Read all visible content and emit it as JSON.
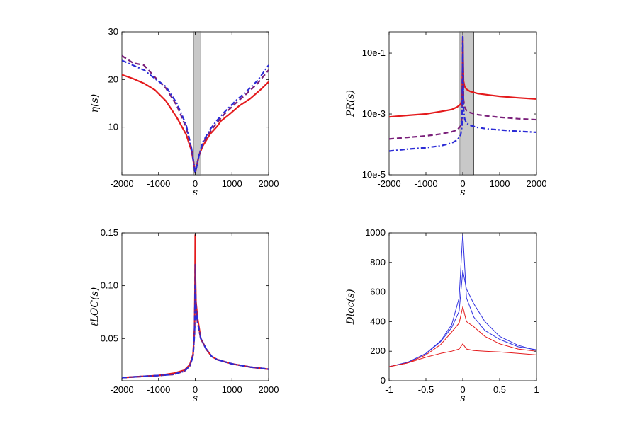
{
  "figure": {
    "layout": "2x2 grid"
  },
  "chart_data": [
    {
      "type": "line",
      "panel": "top-left",
      "xlabel": "s",
      "ylabel": "η(s)",
      "xlim": [
        -2000,
        2000
      ],
      "ylim": [
        0,
        30
      ],
      "xticks": [
        -2000,
        -1000,
        0,
        1000,
        2000
      ],
      "xtick_labels": [
        "-2000",
        "-1000",
        "0",
        "1000",
        "2000"
      ],
      "yticks": [
        10,
        20,
        30
      ],
      "ytick_labels": [
        "10",
        "20",
        "30"
      ],
      "shaded_band": [
        -50,
        150
      ],
      "series": [
        {
          "name": "red solid",
          "color": "#e41a1c",
          "style": "solid",
          "x": [
            -2000,
            -1700,
            -1400,
            -1100,
            -800,
            -500,
            -250,
            -100,
            0,
            100,
            200,
            400,
            600,
            700,
            900,
            1200,
            1500,
            1800,
            2000
          ],
          "y": [
            21,
            20.2,
            19.2,
            17.8,
            15.5,
            12,
            8.5,
            5,
            0.5,
            4,
            6,
            8.5,
            10.2,
            11.3,
            12.5,
            14.5,
            16,
            18,
            19.5
          ]
        },
        {
          "name": "purple dashed",
          "color": "#7a1f7a",
          "style": "dashed",
          "x": [
            -2000,
            -1700,
            -1400,
            -1100,
            -800,
            -500,
            -250,
            -100,
            0,
            100,
            200,
            400,
            600,
            800,
            1100,
            1400,
            1700,
            2000
          ],
          "y": [
            25,
            23.5,
            23,
            20.5,
            18.2,
            14.5,
            10,
            5.5,
            0.5,
            4,
            6.5,
            9,
            11,
            12.8,
            15,
            17,
            19.2,
            22
          ]
        },
        {
          "name": "blue dash-dot",
          "color": "#2b2bd6",
          "style": "dashdot",
          "x": [
            -2000,
            -1700,
            -1400,
            -1100,
            -800,
            -500,
            -250,
            -100,
            0,
            100,
            200,
            400,
            600,
            800,
            1100,
            1400,
            1700,
            2000
          ],
          "y": [
            24,
            23,
            22,
            20.2,
            18.5,
            15,
            10.5,
            5.5,
            0.3,
            4,
            6.8,
            9.5,
            11.5,
            13.2,
            15.5,
            17.5,
            19.8,
            23
          ]
        }
      ]
    },
    {
      "type": "line",
      "panel": "top-right",
      "xlabel": "s",
      "ylabel": "PR(s)",
      "yscale": "log",
      "xlim": [
        -2000,
        2000
      ],
      "ylim": [
        1e-05,
        0.5
      ],
      "xticks": [
        -2000,
        -1000,
        0,
        1000,
        2000
      ],
      "xtick_labels": [
        "-2000",
        "-1000",
        "0",
        "1000",
        "2000"
      ],
      "yticks": [
        1e-05,
        0.001,
        0.1
      ],
      "ytick_labels": [
        "10e-5",
        "10e-3",
        "10e-1"
      ],
      "shaded_band": [
        -100,
        300
      ],
      "vline": -50,
      "series": [
        {
          "name": "red solid",
          "color": "#e41a1c",
          "style": "solid",
          "x": [
            -2000,
            -1500,
            -1000,
            -600,
            -300,
            -150,
            -60,
            -20,
            0,
            20,
            50,
            100,
            200,
            400,
            700,
            1000,
            1500,
            2000
          ],
          "y": [
            0.0008,
            0.0009,
            0.001,
            0.0012,
            0.0014,
            0.0017,
            0.0021,
            0.003,
            0.35,
            0.012,
            0.008,
            0.0065,
            0.0055,
            0.0047,
            0.0042,
            0.0038,
            0.0034,
            0.0031
          ]
        },
        {
          "name": "purple dashed",
          "color": "#7a1f7a",
          "style": "dashed",
          "x": [
            -2000,
            -1500,
            -1000,
            -600,
            -300,
            -150,
            -60,
            -20,
            0,
            20,
            50,
            100,
            200,
            400,
            700,
            1000,
            1500,
            2000
          ],
          "y": [
            0.00015,
            0.00017,
            0.00019,
            0.00022,
            0.00026,
            0.0003,
            0.0004,
            0.0008,
            0.35,
            0.003,
            0.0017,
            0.0013,
            0.0011,
            0.00095,
            0.00085,
            0.00078,
            0.0007,
            0.00065
          ]
        },
        {
          "name": "blue dash-dot",
          "color": "#2b2bd6",
          "style": "dashdot",
          "x": [
            -2000,
            -1500,
            -1000,
            -600,
            -300,
            -150,
            -60,
            -20,
            0,
            20,
            50,
            100,
            200,
            400,
            700,
            1000,
            1500,
            2000
          ],
          "y": [
            6e-05,
            7e-05,
            7.8e-05,
            9e-05,
            0.00011,
            0.00014,
            0.0002,
            0.0004,
            0.35,
            0.0015,
            0.0007,
            0.0005,
            0.00042,
            0.00036,
            0.00032,
            0.0003,
            0.00027,
            0.00025
          ]
        }
      ]
    },
    {
      "type": "line",
      "panel": "bottom-left",
      "xlabel": "s",
      "ylabel": "ℓLOC(s)",
      "xlim": [
        -2000,
        2000
      ],
      "ylim": [
        0.01,
        0.15
      ],
      "xticks": [
        -2000,
        -1000,
        0,
        1000,
        2000
      ],
      "xtick_labels": [
        "-2000",
        "-1000",
        "0",
        "1000",
        "2000"
      ],
      "yticks": [
        0.05,
        0.1,
        0.15
      ],
      "ytick_labels": [
        "0.05",
        "0.10",
        "0.15"
      ],
      "series": [
        {
          "name": "red solid",
          "color": "#e41a1c",
          "style": "solid",
          "x": [
            -2000,
            -1500,
            -1000,
            -600,
            -300,
            -150,
            -60,
            -20,
            -5,
            0,
            5,
            20,
            60,
            150,
            300,
            450,
            600,
            1000,
            1500,
            2000
          ],
          "y": [
            0.013,
            0.014,
            0.015,
            0.017,
            0.02,
            0.025,
            0.035,
            0.06,
            0.1,
            0.148,
            0.11,
            0.085,
            0.07,
            0.05,
            0.04,
            0.033,
            0.03,
            0.026,
            0.023,
            0.021
          ]
        },
        {
          "name": "purple dashed",
          "color": "#7a1f7a",
          "style": "dashed",
          "x": [
            -2000,
            -1500,
            -1000,
            -600,
            -300,
            -150,
            -60,
            -20,
            -5,
            0,
            5,
            20,
            60,
            150,
            300,
            450,
            600,
            1000,
            1500,
            2000
          ],
          "y": [
            0.013,
            0.014,
            0.015,
            0.016,
            0.019,
            0.024,
            0.034,
            0.055,
            0.09,
            0.12,
            0.1,
            0.08,
            0.066,
            0.05,
            0.04,
            0.033,
            0.03,
            0.026,
            0.023,
            0.021
          ]
        },
        {
          "name": "blue dash-dot",
          "color": "#2b2bd6",
          "style": "dashdot",
          "x": [
            -2000,
            -1500,
            -1000,
            -600,
            -300,
            -150,
            -60,
            -20,
            -5,
            0,
            5,
            20,
            60,
            150,
            300,
            450,
            600,
            1000,
            1500,
            2000
          ],
          "y": [
            0.013,
            0.014,
            0.015,
            0.016,
            0.019,
            0.024,
            0.033,
            0.055,
            0.085,
            0.1,
            0.095,
            0.08,
            0.066,
            0.05,
            0.04,
            0.033,
            0.03,
            0.026,
            0.023,
            0.021
          ]
        }
      ]
    },
    {
      "type": "line",
      "panel": "bottom-right",
      "xlabel": "s",
      "ylabel": "Dloc(s)",
      "xlim": [
        -1,
        1
      ],
      "ylim": [
        0,
        1000
      ],
      "xticks": [
        -1,
        -0.5,
        0,
        0.5,
        1
      ],
      "xtick_labels": [
        "-1",
        "-0.5",
        "0",
        "0.5",
        "1"
      ],
      "yticks": [
        0,
        200,
        400,
        600,
        800,
        1000
      ],
      "ytick_labels": [
        "0",
        "200",
        "400",
        "600",
        "800",
        "1000"
      ],
      "series": [
        {
          "name": "blue upper",
          "color": "#3030e0",
          "style": "thin",
          "x": [
            -1,
            -0.75,
            -0.5,
            -0.3,
            -0.15,
            -0.05,
            0,
            0.05,
            0.15,
            0.3,
            0.5,
            0.75,
            1
          ],
          "y": [
            95,
            125,
            185,
            270,
            380,
            560,
            1000,
            560,
            430,
            340,
            280,
            230,
            210
          ]
        },
        {
          "name": "blue lower",
          "color": "#3030e0",
          "style": "thin",
          "x": [
            -1,
            -0.75,
            -0.5,
            -0.3,
            -0.15,
            -0.05,
            0,
            0.05,
            0.15,
            0.3,
            0.5,
            0.75,
            1
          ],
          "y": [
            95,
            125,
            183,
            265,
            360,
            470,
            745,
            620,
            520,
            400,
            300,
            240,
            205
          ]
        },
        {
          "name": "red upper",
          "color": "#e41a1c",
          "style": "thin",
          "x": [
            -1,
            -0.75,
            -0.5,
            -0.3,
            -0.15,
            -0.05,
            0,
            0.05,
            0.15,
            0.3,
            0.5,
            0.75,
            1
          ],
          "y": [
            95,
            120,
            175,
            245,
            330,
            390,
            500,
            400,
            365,
            300,
            250,
            215,
            200
          ]
        },
        {
          "name": "red lower",
          "color": "#e41a1c",
          "style": "thin",
          "x": [
            -1,
            -0.75,
            -0.5,
            -0.3,
            -0.15,
            -0.05,
            0,
            0.05,
            0.15,
            0.3,
            0.5,
            0.75,
            1
          ],
          "y": [
            95,
            120,
            160,
            185,
            200,
            215,
            250,
            215,
            205,
            200,
            195,
            185,
            175
          ]
        }
      ]
    }
  ]
}
